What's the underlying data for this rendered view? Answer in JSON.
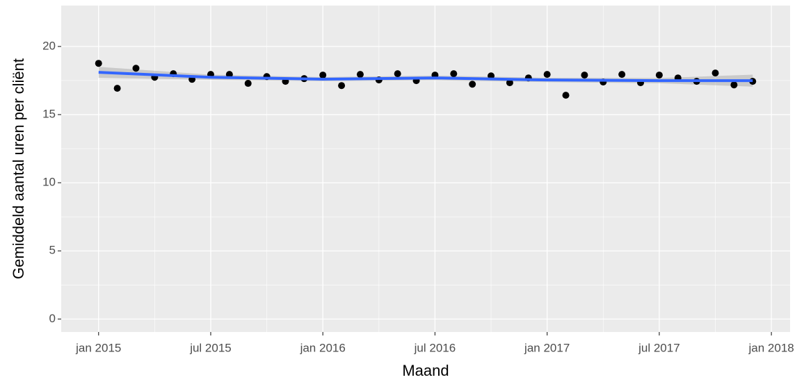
{
  "chart_data": {
    "type": "scatter",
    "x_label": "Maand",
    "y_label": "Gemiddeld aantal uren per cliënt",
    "x": [
      "2015-01",
      "2015-02",
      "2015-03",
      "2015-04",
      "2015-05",
      "2015-06",
      "2015-07",
      "2015-08",
      "2015-09",
      "2015-10",
      "2015-11",
      "2015-12",
      "2016-01",
      "2016-02",
      "2016-03",
      "2016-04",
      "2016-05",
      "2016-06",
      "2016-07",
      "2016-08",
      "2016-09",
      "2016-10",
      "2016-11",
      "2016-12",
      "2017-01",
      "2017-02",
      "2017-03",
      "2017-04",
      "2017-05",
      "2017-06",
      "2017-07",
      "2017-08",
      "2017-09",
      "2017-10",
      "2017-11",
      "2017-12"
    ],
    "values": [
      18.76,
      16.93,
      18.4,
      17.74,
      18.0,
      17.59,
      17.95,
      17.95,
      17.29,
      17.79,
      17.44,
      17.64,
      17.9,
      17.13,
      17.95,
      17.54,
      18.0,
      17.49,
      17.9,
      18.0,
      17.23,
      17.84,
      17.34,
      17.69,
      17.95,
      16.42,
      17.9,
      17.39,
      17.95,
      17.34,
      17.9,
      17.69,
      17.44,
      18.05,
      17.18,
      17.44
    ],
    "point_color": "#000000",
    "smooth": {
      "x": [
        "2015-01",
        "2015-07",
        "2016-01",
        "2016-07",
        "2017-01",
        "2017-07",
        "2017-12"
      ],
      "values": [
        18.1,
        17.74,
        17.6,
        17.69,
        17.54,
        17.49,
        17.49
      ],
      "lower": [
        17.7,
        17.55,
        17.45,
        17.52,
        17.38,
        17.3,
        17.05
      ],
      "upper": [
        18.5,
        17.93,
        17.75,
        17.86,
        17.7,
        17.68,
        17.93
      ],
      "color": "#3366ff",
      "band_color": "#999999"
    },
    "xlim": [
      "2014-11",
      "2018-02"
    ],
    "ylim": [
      -0.95,
      23
    ],
    "xticks": [
      {
        "value": "2015-01",
        "label": "jan 2015"
      },
      {
        "value": "2015-07",
        "label": "jul 2015"
      },
      {
        "value": "2016-01",
        "label": "jan 2016"
      },
      {
        "value": "2016-07",
        "label": "jul 2016"
      },
      {
        "value": "2017-01",
        "label": "jan 2017"
      },
      {
        "value": "2017-07",
        "label": "jul 2017"
      },
      {
        "value": "2018-01",
        "label": "jan 2018"
      }
    ],
    "yticks": [
      0,
      5,
      10,
      15,
      20
    ],
    "grid": true,
    "minor_grid": true
  }
}
